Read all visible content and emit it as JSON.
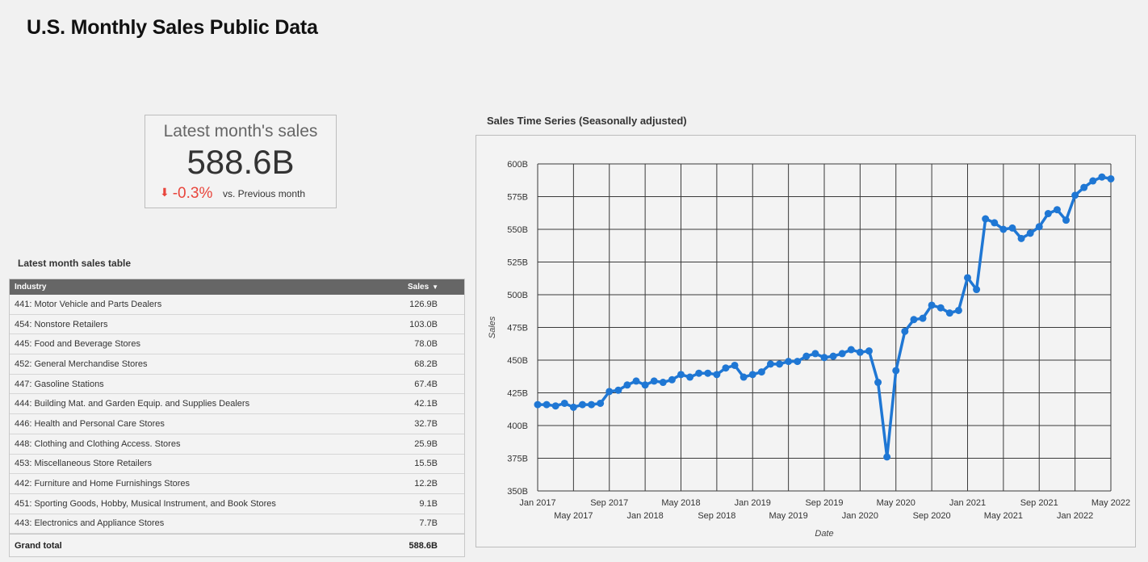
{
  "page": {
    "title": "U.S. Monthly Sales Public Data"
  },
  "kpi": {
    "label": "Latest month's sales",
    "value": "588.6B",
    "delta": "-0.3%",
    "compare": "vs. Previous month",
    "arrow_icon": "arrow-down-icon",
    "delta_color": "#e8453c"
  },
  "table": {
    "title": "Latest month sales table",
    "headers": {
      "industry": "Industry",
      "sales": "Sales"
    },
    "sort_icon": "sort-desc-icon",
    "rows": [
      {
        "industry": "441: Motor Vehicle and Parts Dealers",
        "sales": "126.9B"
      },
      {
        "industry": "454: Nonstore Retailers",
        "sales": "103.0B"
      },
      {
        "industry": "445: Food and Beverage Stores",
        "sales": "78.0B"
      },
      {
        "industry": "452: General Merchandise Stores",
        "sales": "68.2B"
      },
      {
        "industry": "447: Gasoline Stations",
        "sales": "67.4B"
      },
      {
        "industry": "444: Building Mat. and Garden Equip. and Supplies Dealers",
        "sales": "42.1B"
      },
      {
        "industry": "446: Health and Personal Care Stores",
        "sales": "32.7B"
      },
      {
        "industry": "448: Clothing and Clothing Access. Stores",
        "sales": "25.9B"
      },
      {
        "industry": "453: Miscellaneous Store Retailers",
        "sales": "15.5B"
      },
      {
        "industry": "442: Furniture and Home Furnishings Stores",
        "sales": "12.2B"
      },
      {
        "industry": "451: Sporting Goods, Hobby, Musical Instrument, and Book Stores",
        "sales": "9.1B"
      },
      {
        "industry": "443: Electronics and Appliance Stores",
        "sales": "7.7B"
      }
    ],
    "total": {
      "label": "Grand total",
      "sales": "588.6B"
    }
  },
  "chart_data": {
    "type": "line",
    "title": "Sales Time Series (Seasonally adjusted)",
    "xlabel": "Date",
    "ylabel": "Sales",
    "ylim": [
      350,
      600
    ],
    "y_ticks": [
      "350B",
      "375B",
      "400B",
      "425B",
      "450B",
      "475B",
      "500B",
      "525B",
      "550B",
      "575B",
      "600B"
    ],
    "x_ticks_top": [
      "Jan 2017",
      "Sep 2017",
      "May 2018",
      "Jan 2019",
      "Sep 2019",
      "May 2020",
      "Jan 2021",
      "Sep 2021",
      "May 2022"
    ],
    "x_ticks_bottom": [
      "May 2017",
      "Jan 2018",
      "Sep 2018",
      "May 2019",
      "Jan 2020",
      "Sep 2020",
      "May 2021",
      "Jan 2022"
    ],
    "grid": true,
    "color": "#1f77d4",
    "x": [
      "2017-01",
      "2017-02",
      "2017-03",
      "2017-04",
      "2017-05",
      "2017-06",
      "2017-07",
      "2017-08",
      "2017-09",
      "2017-10",
      "2017-11",
      "2017-12",
      "2018-01",
      "2018-02",
      "2018-03",
      "2018-04",
      "2018-05",
      "2018-06",
      "2018-07",
      "2018-08",
      "2018-09",
      "2018-10",
      "2018-11",
      "2018-12",
      "2019-01",
      "2019-02",
      "2019-03",
      "2019-04",
      "2019-05",
      "2019-06",
      "2019-07",
      "2019-08",
      "2019-09",
      "2019-10",
      "2019-11",
      "2019-12",
      "2020-01",
      "2020-02",
      "2020-03",
      "2020-04",
      "2020-05",
      "2020-06",
      "2020-07",
      "2020-08",
      "2020-09",
      "2020-10",
      "2020-11",
      "2020-12",
      "2021-01",
      "2021-02",
      "2021-03",
      "2021-04",
      "2021-05",
      "2021-06",
      "2021-07",
      "2021-08",
      "2021-09",
      "2021-10",
      "2021-11",
      "2021-12",
      "2022-01",
      "2022-02",
      "2022-03",
      "2022-04",
      "2022-05"
    ],
    "values": [
      416,
      416,
      415,
      417,
      414,
      416,
      416,
      417,
      426,
      427,
      431,
      434,
      431,
      434,
      433,
      435,
      439,
      437,
      440,
      440,
      439,
      444,
      446,
      437,
      439,
      441,
      447,
      447,
      449,
      449,
      453,
      455,
      452,
      453,
      455,
      458,
      456,
      457,
      433,
      376,
      442,
      472,
      481,
      482,
      492,
      490,
      486,
      488,
      513,
      504,
      558,
      555,
      550,
      551,
      543,
      547,
      552,
      562,
      565,
      557,
      576,
      582,
      587,
      590,
      588.6
    ]
  }
}
